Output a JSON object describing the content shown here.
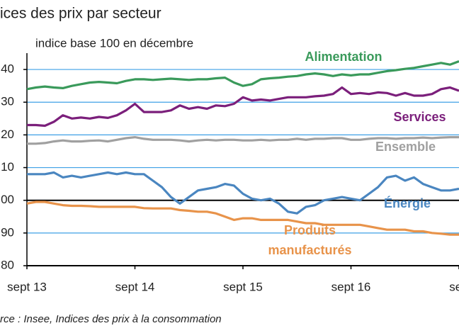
{
  "chart_data": {
    "type": "line",
    "title": "ices des prix par secteur",
    "subtitle": "indice base 100 en décembre",
    "source": "rce : Insee, Indices des prix à la consommation",
    "categories": [
      "sept 13",
      null,
      null,
      null,
      null,
      null,
      null,
      null,
      null,
      null,
      null,
      null,
      "sept 14",
      null,
      null,
      null,
      null,
      null,
      null,
      null,
      null,
      null,
      null,
      null,
      "sept 15",
      null,
      null,
      null,
      null,
      null,
      null,
      null,
      null,
      null,
      null,
      null,
      "sept 16",
      null,
      null,
      null,
      null,
      null,
      null,
      null,
      null,
      null,
      null,
      null,
      "sep"
    ],
    "ylim": [
      80,
      145
    ],
    "yticks": [
      80,
      90,
      {
        "value": 100,
        "label": "00"
      },
      {
        "value": 110,
        "label": "10"
      },
      {
        "value": 120,
        "label": "20"
      },
      {
        "value": 130,
        "label": "30"
      },
      {
        "value": 140,
        "label": "40"
      }
    ],
    "grid": true,
    "series": [
      {
        "name": "Alimentation",
        "color": "#3a9a5b",
        "values": [
          134,
          134.5,
          134.8,
          134.5,
          134.3,
          135,
          135.5,
          136,
          136.2,
          136,
          135.8,
          136.5,
          137,
          137,
          136.8,
          137,
          137.2,
          137,
          136.8,
          137,
          137,
          137.3,
          137.5,
          136,
          135,
          135.5,
          137,
          137.3,
          137.5,
          137.8,
          138,
          138.5,
          138.8,
          138.5,
          138,
          138.5,
          138.2,
          138.5,
          138.5,
          139,
          139.5,
          139.8,
          140.2,
          140.5,
          141,
          141.5,
          142,
          141.5,
          142.5
        ]
      },
      {
        "name": "Services",
        "color": "#7b1f7b",
        "values": [
          123,
          123,
          122.8,
          124,
          126,
          125,
          125.3,
          125,
          125.5,
          125.2,
          126,
          127.5,
          129.5,
          127,
          127,
          127,
          127.5,
          129,
          128,
          128.5,
          128,
          129,
          128.8,
          129.5,
          131.5,
          130.5,
          130.8,
          130.5,
          131,
          131.5,
          131.5,
          131.5,
          131.8,
          132,
          132.5,
          134.5,
          132.5,
          132.8,
          132.5,
          133,
          132.8,
          132,
          132.8,
          132,
          132,
          132.5,
          134,
          134.5,
          133.5
        ]
      },
      {
        "name": "Ensemble",
        "color": "#a0a0a0",
        "values": [
          117.3,
          117.3,
          117.5,
          118,
          118.3,
          118,
          118,
          118.2,
          118.3,
          118,
          118.5,
          119,
          119.3,
          118.8,
          118.5,
          118.5,
          118.5,
          118.3,
          118,
          118.3,
          118.5,
          118.3,
          118.5,
          118.5,
          118.3,
          118.3,
          118.5,
          118.3,
          118.5,
          118.5,
          118.8,
          118.5,
          118.8,
          118.8,
          119,
          119,
          118.5,
          118.5,
          118.8,
          119,
          119,
          118.8,
          119,
          119,
          119.2,
          119,
          119.2,
          119.3,
          119.3
        ]
      },
      {
        "name": "Énergie",
        "color": "#4a86c0",
        "values": [
          108,
          108,
          108,
          108.5,
          107,
          107.5,
          107,
          107.5,
          108,
          108.5,
          108,
          108.5,
          108,
          108,
          106,
          104,
          101,
          99,
          101,
          103,
          103.5,
          104,
          105,
          104.5,
          102,
          100.5,
          100,
          100.5,
          99,
          96.5,
          96,
          98,
          98.5,
          100,
          100.5,
          101,
          100.5,
          100,
          102,
          104,
          107,
          107.5,
          106,
          107,
          105,
          104,
          103,
          103,
          103.5
        ]
      },
      {
        "name": "Produits manufacturés",
        "color": "#e8934a",
        "values": [
          99,
          99.5,
          99.5,
          99,
          98.5,
          98.3,
          98.3,
          98.2,
          98,
          98,
          98,
          98,
          98,
          97.6,
          97.5,
          97.5,
          97.5,
          97,
          96.8,
          96.5,
          96.5,
          96,
          95,
          94,
          94.5,
          94.5,
          94,
          94,
          94,
          94,
          93.5,
          93,
          93,
          92.5,
          92.5,
          92.5,
          92.5,
          92.5,
          92,
          91.5,
          91,
          91,
          91,
          90.5,
          90.5,
          90,
          89.8,
          89.5,
          89.5
        ]
      }
    ]
  }
}
